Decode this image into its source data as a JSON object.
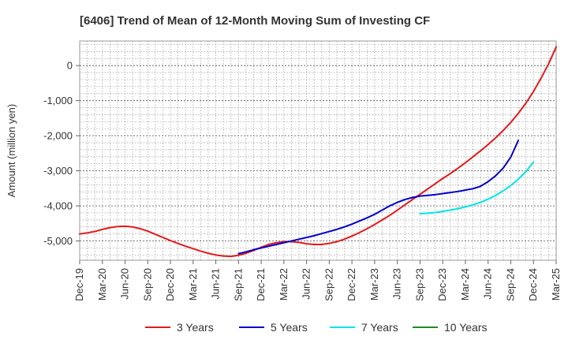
{
  "chart_data": {
    "type": "line",
    "title": "[6406]  Trend of Mean of 12-Month Moving Sum of Investing CF",
    "xlabel": "",
    "ylabel": "Amount (million yen)",
    "ylim": [
      -5550,
      700
    ],
    "yticks": [
      0,
      -1000,
      -2000,
      -3000,
      -4000,
      -5000
    ],
    "ytick_labels": [
      "0",
      "-1,000",
      "-2,000",
      "-3,000",
      "-4,000",
      "-5,000"
    ],
    "x_categories": [
      "Dec-19",
      "Mar-20",
      "Jun-20",
      "Sep-20",
      "Dec-20",
      "Mar-21",
      "Jun-21",
      "Sep-21",
      "Dec-21",
      "Mar-22",
      "Jun-22",
      "Sep-22",
      "Dec-22",
      "Mar-23",
      "Jun-23",
      "Sep-23",
      "Dec-23",
      "Mar-24",
      "Jun-24",
      "Sep-24",
      "Dec-24",
      "Mar-25"
    ],
    "grid": true,
    "legend_position": "bottom",
    "series": [
      {
        "name": "3 Years",
        "color": "#e31a1c",
        "start_index": 0,
        "values": [
          -4800,
          -4770,
          -4730,
          -4670,
          -4620,
          -4590,
          -4580,
          -4600,
          -4650,
          -4720,
          -4810,
          -4900,
          -4990,
          -5070,
          -5150,
          -5220,
          -5290,
          -5350,
          -5400,
          -5430,
          -5440,
          -5410,
          -5350,
          -5270,
          -5180,
          -5100,
          -5050,
          -5020,
          -5020,
          -5040,
          -5080,
          -5100,
          -5100,
          -5070,
          -5020,
          -4950,
          -4860,
          -4760,
          -4650,
          -4530,
          -4400,
          -4270,
          -4120,
          -3970,
          -3820,
          -3670,
          -3520,
          -3370,
          -3220,
          -3080,
          -2930,
          -2770,
          -2600,
          -2430,
          -2250,
          -2060,
          -1850,
          -1620,
          -1360,
          -1070,
          -740,
          -360,
          50,
          530
        ]
      },
      {
        "name": "5 Years",
        "color": "#0000cc",
        "start_index": 21,
        "values": [
          -5360,
          -5310,
          -5250,
          -5200,
          -5150,
          -5100,
          -5050,
          -5000,
          -4950,
          -4900,
          -4850,
          -4790,
          -4730,
          -4670,
          -4600,
          -4520,
          -4430,
          -4340,
          -4240,
          -4120,
          -4000,
          -3900,
          -3820,
          -3760,
          -3720,
          -3700,
          -3680,
          -3650,
          -3620,
          -3590,
          -3550,
          -3510,
          -3440,
          -3310,
          -3140,
          -2920,
          -2610,
          -2130
        ]
      },
      {
        "name": "7 Years",
        "color": "#00e5e5",
        "start_index": 45,
        "values": [
          -4220,
          -4210,
          -4190,
          -4160,
          -4120,
          -4080,
          -4030,
          -3970,
          -3900,
          -3810,
          -3700,
          -3570,
          -3420,
          -3240,
          -3020,
          -2750
        ]
      },
      {
        "name": "10 Years",
        "color": "#228b22",
        "start_index": 0,
        "values": []
      }
    ]
  }
}
